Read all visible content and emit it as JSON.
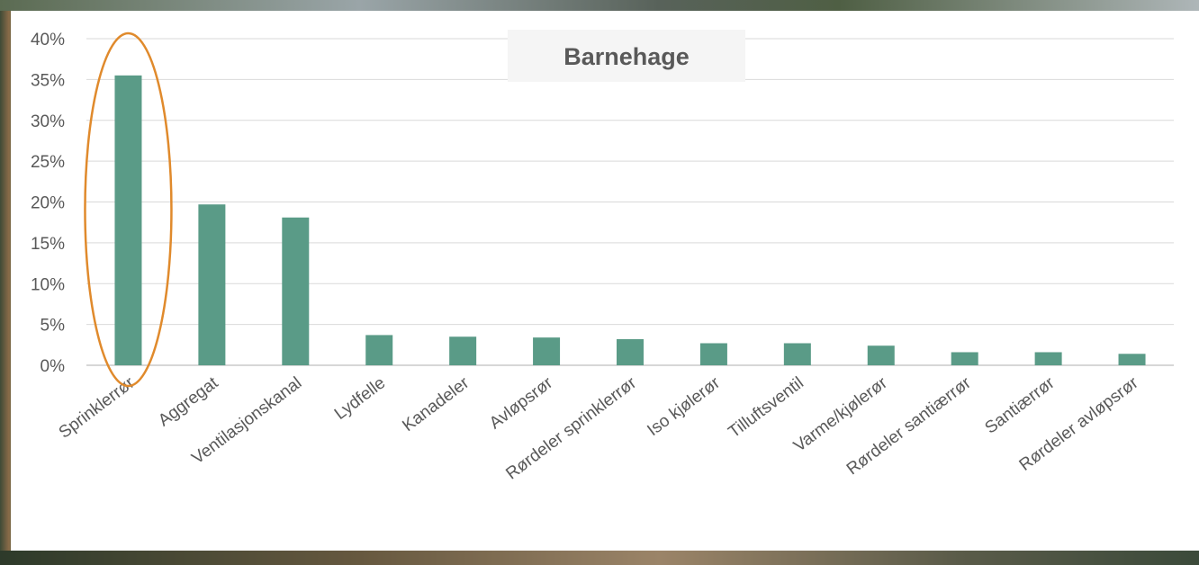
{
  "chart_data": {
    "type": "bar",
    "title": "Barnehage",
    "categories": [
      "Sprinklerrør",
      "Aggregat",
      "Ventilasjonskanal",
      "Lydfelle",
      "Kanadeler",
      "Avløpsrør",
      "Rørdeler sprinklerrør",
      "Iso kjølerør",
      "Tilluftsventil",
      "Varme/kjølerør",
      "Rørdeler santiærrør",
      "Santiærrør",
      "Rørdeler avløpsrør"
    ],
    "values": [
      35.5,
      19.7,
      18.1,
      3.7,
      3.5,
      3.4,
      3.2,
      2.7,
      2.7,
      2.4,
      1.6,
      1.6,
      1.4
    ],
    "ylim": [
      0,
      40
    ],
    "yticks": [
      "0%",
      "5%",
      "10%",
      "15%",
      "20%",
      "25%",
      "30%",
      "35%",
      "40%"
    ],
    "xlabel": "",
    "ylabel": "",
    "grid": true,
    "bar_color": "#5a9b87",
    "highlight": {
      "category": "Sprinklerrør",
      "shape": "ellipse",
      "color": "#e08a2c"
    }
  }
}
